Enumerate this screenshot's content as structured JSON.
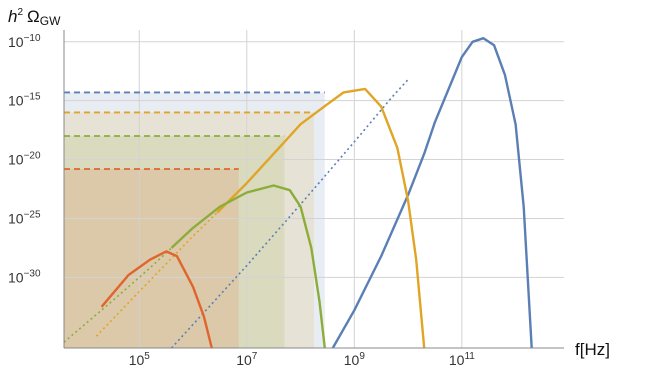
{
  "chart_data": {
    "type": "line",
    "title": "",
    "xlabel": "f[Hz]",
    "ylabel": {
      "prefix": "h",
      "exp": "2",
      "omega": "Ω",
      "sub": "GW"
    },
    "x_scale": "log10",
    "y_scale": "log10",
    "xlim_log10": [
      3.6,
      12.9
    ],
    "ylim_log10": [
      -36,
      -9
    ],
    "grid": true,
    "x_ticks": [
      {
        "base": "10",
        "exp": "5",
        "log10": 5
      },
      {
        "base": "10",
        "exp": "7",
        "log10": 7
      },
      {
        "base": "10",
        "exp": "9",
        "log10": 9
      },
      {
        "base": "10",
        "exp": "11",
        "log10": 11
      }
    ],
    "y_ticks": [
      {
        "base": "10",
        "exp": "−10",
        "log10": -10
      },
      {
        "base": "10",
        "exp": "−15",
        "log10": -15
      },
      {
        "base": "10",
        "exp": "−20",
        "log10": -20
      },
      {
        "base": "10",
        "exp": "−25",
        "log10": -25
      },
      {
        "base": "10",
        "exp": "−30",
        "log10": -30
      }
    ],
    "series": [
      {
        "color": "#5b7fb4",
        "solid_log10": [
          [
            8.6,
            -36.0
          ],
          [
            9.0,
            -32.8
          ],
          [
            9.5,
            -28.2
          ],
          [
            10.0,
            -23.0
          ],
          [
            10.3,
            -19.5
          ],
          [
            10.5,
            -16.8
          ],
          [
            10.8,
            -13.5
          ],
          [
            11.0,
            -11.3
          ],
          [
            11.2,
            -10.0
          ],
          [
            11.4,
            -9.7
          ],
          [
            11.6,
            -10.3
          ],
          [
            11.8,
            -12.8
          ],
          [
            12.0,
            -17.0
          ],
          [
            12.15,
            -24.0
          ],
          [
            12.3,
            -36.0
          ]
        ],
        "dotted_log10": [
          [
            5.6,
            -36.0
          ],
          [
            7.0,
            -29.0
          ],
          [
            8.0,
            -23.8
          ],
          [
            9.0,
            -18.5
          ],
          [
            9.7,
            -14.7
          ],
          [
            10.0,
            -13.2
          ]
        ],
        "bound_log10": -14.3,
        "bound_band_log10": [
          3.6,
          8.45
        ]
      },
      {
        "color": "#e0a526",
        "solid_log10": [
          [
            6.45,
            -24.5
          ],
          [
            7.0,
            -22.0
          ],
          [
            7.5,
            -19.5
          ],
          [
            8.0,
            -17.0
          ],
          [
            8.5,
            -15.3
          ],
          [
            8.8,
            -14.3
          ],
          [
            9.2,
            -14.0
          ],
          [
            9.5,
            -15.5
          ],
          [
            9.8,
            -19.0
          ],
          [
            10.0,
            -23.5
          ],
          [
            10.15,
            -28.5
          ],
          [
            10.3,
            -36.0
          ]
        ],
        "dotted_log10": [
          [
            4.2,
            -35.0
          ],
          [
            5.0,
            -31.2
          ],
          [
            6.0,
            -26.5
          ],
          [
            6.45,
            -24.5
          ]
        ],
        "bound_log10": -16.0,
        "bound_band_log10": [
          3.6,
          8.25
        ]
      },
      {
        "color": "#8cad3a",
        "solid_log10": [
          [
            5.6,
            -27.5
          ],
          [
            6.0,
            -25.8
          ],
          [
            6.5,
            -24.0
          ],
          [
            7.0,
            -22.8
          ],
          [
            7.5,
            -22.2
          ],
          [
            7.8,
            -22.6
          ],
          [
            8.0,
            -24.0
          ],
          [
            8.2,
            -27.5
          ],
          [
            8.35,
            -32.0
          ],
          [
            8.45,
            -36.0
          ]
        ],
        "dotted_log10": [
          [
            3.6,
            -35.5
          ],
          [
            4.5,
            -32.0
          ],
          [
            5.2,
            -29.2
          ],
          [
            5.6,
            -27.5
          ]
        ],
        "bound_log10": -18.0,
        "bound_band_log10": [
          3.6,
          7.7
        ]
      },
      {
        "color": "#e0652d",
        "solid_log10": [
          [
            4.3,
            -32.5
          ],
          [
            4.8,
            -29.8
          ],
          [
            5.2,
            -28.5
          ],
          [
            5.5,
            -27.8
          ],
          [
            5.7,
            -28.2
          ],
          [
            6.0,
            -30.8
          ],
          [
            6.2,
            -33.3
          ],
          [
            6.35,
            -36.0
          ]
        ],
        "dotted_log10": [],
        "bound_log10": -20.8,
        "bound_band_log10": [
          3.6,
          6.85
        ]
      }
    ]
  }
}
